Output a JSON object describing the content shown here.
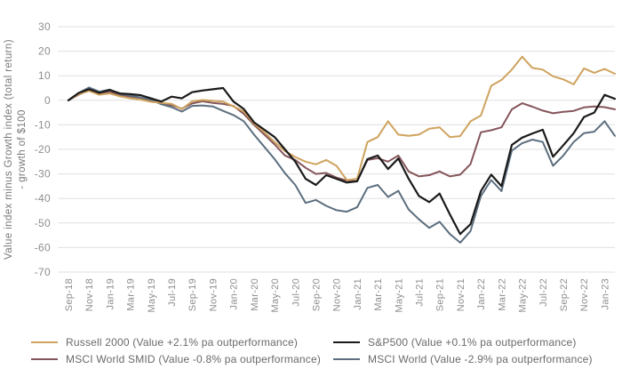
{
  "chart_data": {
    "type": "line",
    "title": "",
    "ylabel_line1": "Value index minus Growth index (total return)",
    "ylabel_line2": "- growth of $100",
    "ylim": [
      -70,
      30
    ],
    "ytick_step": 10,
    "ytick_labels": [
      "30",
      "20",
      "10",
      "0",
      "-10",
      "-20",
      "-30",
      "-40",
      "-50",
      "-60",
      "-70"
    ],
    "grid": "horizontal",
    "legend_position": "bottom-two-columns",
    "x_label_every": 2,
    "x_labels": [
      "Sep-18",
      "Nov-18",
      "Jan-19",
      "Mar-19",
      "May-19",
      "Jul-19",
      "Sep-19",
      "Nov-19",
      "Jan-20",
      "Mar-20",
      "May-20",
      "Jul-20",
      "Sep-20",
      "Nov-20",
      "Jan-21",
      "Mar-21",
      "May-21",
      "Jul-21",
      "Sep-21",
      "Nov-21",
      "Jan-22",
      "Mar-22",
      "May-22",
      "Jul-22",
      "Sep-22",
      "Nov-22",
      "Jan-23"
    ],
    "series_draw_order": [
      2,
      3,
      0,
      1
    ],
    "series": [
      {
        "key": "russell-2000",
        "name": "Russell 2000 (Value +2.1% pa outperformance)",
        "color": "#CFA35E",
        "stroke_width": 2,
        "values": [
          0,
          2.5,
          3.8,
          2.3,
          2.8,
          1.6,
          0.8,
          0.3,
          -0.6,
          -1.0,
          -1.4,
          -3.6,
          -0.4,
          0.1,
          -0.2,
          -0.5,
          -2.5,
          -4.5,
          -9.5,
          -13,
          -17,
          -20.7,
          -23.1,
          -25,
          -26.1,
          -24.3,
          -26.7,
          -32.5,
          -32,
          -17,
          -15,
          -8.5,
          -14,
          -14.5,
          -14,
          -11.6,
          -11,
          -15,
          -14.6,
          -8.6,
          -6.2,
          5.9,
          8.3,
          12.5,
          17.8,
          13.2,
          12.5,
          9.8,
          8.5,
          6.5,
          13,
          11.2,
          12.8,
          10.8
        ]
      },
      {
        "key": "sp500",
        "name": "S&P500 (Value +0.1% pa outperformance)",
        "color": "#1a1a1a",
        "stroke_width": 2.2,
        "values": [
          0,
          3,
          4.5,
          3,
          4.2,
          2.8,
          2.5,
          2.1,
          0.8,
          -0.5,
          1.5,
          0.8,
          3.3,
          4.0,
          4.5,
          5.0,
          -0.5,
          -3.5,
          -9,
          -12,
          -15,
          -20,
          -25,
          -32,
          -34.5,
          -30.5,
          -32,
          -33.5,
          -33,
          -24,
          -22.5,
          -28,
          -23.7,
          -32,
          -39,
          -41.5,
          -38,
          -46.5,
          -54.5,
          -50.5,
          -37,
          -30.3,
          -35,
          -18.2,
          -15.2,
          -13.5,
          -12,
          -23,
          -18.3,
          -13.4,
          -6.8,
          -5.0,
          2.2,
          0.6
        ]
      },
      {
        "key": "msci-world-smid",
        "name": "MSCI World SMID (Value -0.8% pa outperformance)",
        "color": "#84555A",
        "stroke_width": 2,
        "values": [
          0,
          2.3,
          4.1,
          2.3,
          3.4,
          2.2,
          1.5,
          1.0,
          -0.2,
          -1.2,
          -2.0,
          -3.4,
          -1.3,
          -0.4,
          -1.1,
          -1.5,
          -2.3,
          -5.5,
          -10,
          -14,
          -18,
          -22.5,
          -24.3,
          -27.5,
          -30,
          -29.6,
          -31.5,
          -32.7,
          -33,
          -24.3,
          -23.6,
          -25,
          -22.5,
          -29,
          -31,
          -30.5,
          -29,
          -31,
          -30.3,
          -26,
          -13,
          -12.2,
          -11,
          -3.7,
          -1.2,
          -2.6,
          -4.2,
          -5.3,
          -4.7,
          -4.3,
          -2.9,
          -2.5,
          -2.8,
          -3.7
        ]
      },
      {
        "key": "msci-world",
        "name": "MSCI World (Value -2.9% pa outperformance)",
        "color": "#5C6E7E",
        "stroke_width": 2,
        "values": [
          0,
          3,
          5.2,
          3.5,
          4.4,
          2.6,
          1.8,
          1.2,
          0.2,
          -1.6,
          -2.8,
          -4.6,
          -2.3,
          -2.1,
          -2.5,
          -4.3,
          -6,
          -8.5,
          -14,
          -19,
          -24,
          -29.7,
          -34.5,
          -41.8,
          -40.6,
          -43,
          -44.8,
          -45.4,
          -43.6,
          -35.7,
          -34.5,
          -39.4,
          -36.9,
          -44.5,
          -48.5,
          -52,
          -49.5,
          -54.5,
          -58,
          -53.3,
          -39,
          -32.5,
          -37,
          -20.5,
          -17.5,
          -16,
          -17,
          -26.7,
          -22.5,
          -17,
          -13.4,
          -12.8,
          -8.5,
          -14.5
        ]
      }
    ],
    "colors": {
      "grid": "#e0e0e0",
      "tick_text": "#8e8e8e",
      "axis_title_text": "#787878",
      "legend_text": "#6a6a6a"
    }
  }
}
